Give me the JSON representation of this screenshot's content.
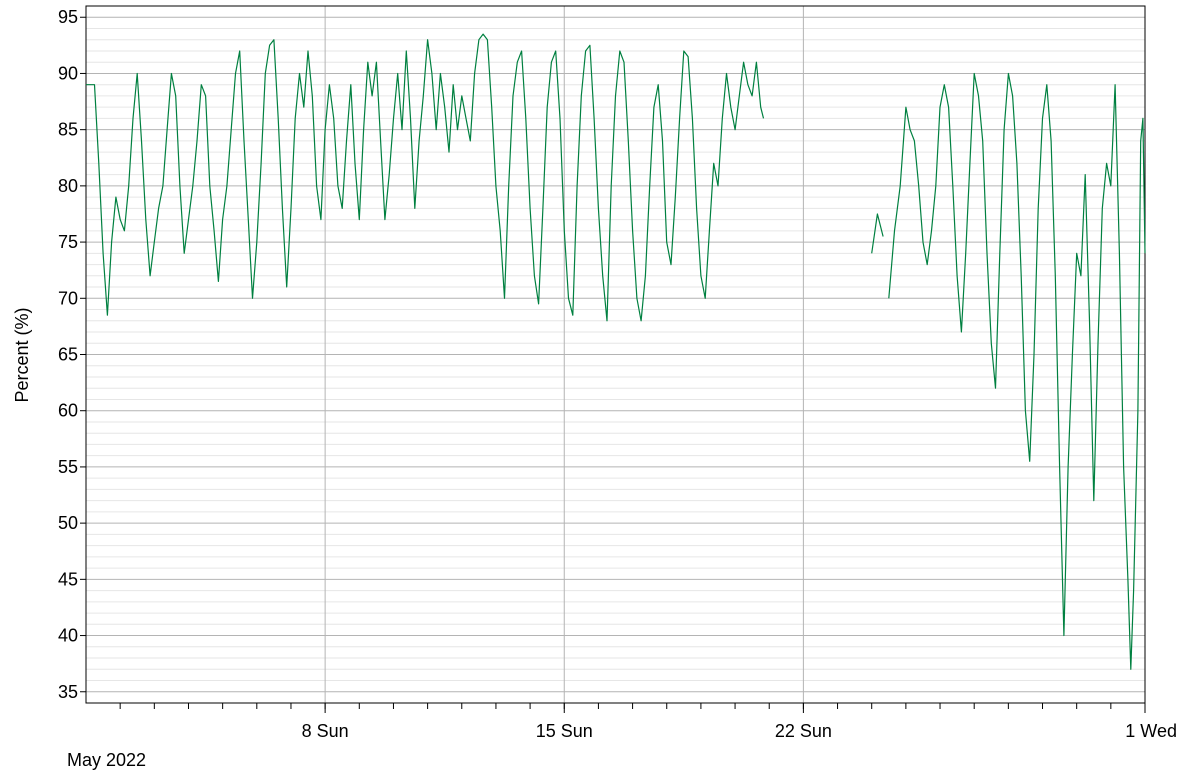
{
  "chart_data": {
    "type": "line",
    "title": "",
    "xlabel": "",
    "ylabel": "Percent (%)",
    "period_label": "May 2022",
    "xlim": [
      "2022-05-01",
      "2022-06-01"
    ],
    "ylim": [
      34,
      96
    ],
    "y_ticks": [
      35,
      40,
      45,
      50,
      55,
      60,
      65,
      70,
      75,
      80,
      85,
      90,
      95
    ],
    "x_ticks": [
      {
        "date": "2022-05-08",
        "label": "8 Sun"
      },
      {
        "date": "2022-05-15",
        "label": "15 Sun"
      },
      {
        "date": "2022-05-22",
        "label": "22 Sun"
      },
      {
        "date": "2022-06-01",
        "label": "1 Wed"
      }
    ],
    "grid": true,
    "legend": "none",
    "colors": {
      "series": "#008040",
      "grid_major": "#b4b4b4",
      "grid_minor": "#e6e6e6",
      "axis": "#000000"
    },
    "series": [
      {
        "points": [
          [
            "2022-05-01 00:00",
            89
          ],
          [
            "2022-05-01 06:00",
            89
          ],
          [
            "2022-05-01 09:00",
            82
          ],
          [
            "2022-05-01 12:00",
            74
          ],
          [
            "2022-05-01 15:00",
            68.5
          ],
          [
            "2022-05-01 18:00",
            75
          ],
          [
            "2022-05-01 21:00",
            79
          ],
          [
            "2022-05-02 00:00",
            77
          ],
          [
            "2022-05-02 03:00",
            76
          ],
          [
            "2022-05-02 06:00",
            80
          ],
          [
            "2022-05-02 09:00",
            86
          ],
          [
            "2022-05-02 12:00",
            90
          ],
          [
            "2022-05-02 15:00",
            84
          ],
          [
            "2022-05-02 18:00",
            77
          ],
          [
            "2022-05-02 21:00",
            72
          ],
          [
            "2022-05-03 00:00",
            75
          ],
          [
            "2022-05-03 03:00",
            78
          ],
          [
            "2022-05-03 06:00",
            80
          ],
          [
            "2022-05-03 09:00",
            85
          ],
          [
            "2022-05-03 12:00",
            90
          ],
          [
            "2022-05-03 15:00",
            88
          ],
          [
            "2022-05-03 18:00",
            80
          ],
          [
            "2022-05-03 21:00",
            74
          ],
          [
            "2022-05-04 00:00",
            77
          ],
          [
            "2022-05-04 03:00",
            80
          ],
          [
            "2022-05-04 06:00",
            84
          ],
          [
            "2022-05-04 09:00",
            89
          ],
          [
            "2022-05-04 12:00",
            88
          ],
          [
            "2022-05-04 15:00",
            80
          ],
          [
            "2022-05-04 18:00",
            76
          ],
          [
            "2022-05-04 21:00",
            71.5
          ],
          [
            "2022-05-05 00:00",
            77
          ],
          [
            "2022-05-05 03:00",
            80
          ],
          [
            "2022-05-05 06:00",
            85
          ],
          [
            "2022-05-05 09:00",
            90
          ],
          [
            "2022-05-05 12:00",
            92
          ],
          [
            "2022-05-05 15:00",
            84
          ],
          [
            "2022-05-05 18:00",
            77
          ],
          [
            "2022-05-05 21:00",
            70
          ],
          [
            "2022-05-06 00:00",
            75
          ],
          [
            "2022-05-06 03:00",
            82
          ],
          [
            "2022-05-06 06:00",
            90
          ],
          [
            "2022-05-06 09:00",
            92.5
          ],
          [
            "2022-05-06 12:00",
            93
          ],
          [
            "2022-05-06 15:00",
            86
          ],
          [
            "2022-05-06 18:00",
            78
          ],
          [
            "2022-05-06 21:00",
            71
          ],
          [
            "2022-05-07 00:00",
            78
          ],
          [
            "2022-05-07 03:00",
            86
          ],
          [
            "2022-05-07 06:00",
            90
          ],
          [
            "2022-05-07 09:00",
            87
          ],
          [
            "2022-05-07 12:00",
            92
          ],
          [
            "2022-05-07 15:00",
            88
          ],
          [
            "2022-05-07 18:00",
            80
          ],
          [
            "2022-05-07 21:00",
            77
          ],
          [
            "2022-05-08 00:00",
            85
          ],
          [
            "2022-05-08 03:00",
            89
          ],
          [
            "2022-05-08 06:00",
            86
          ],
          [
            "2022-05-08 09:00",
            80
          ],
          [
            "2022-05-08 12:00",
            78
          ],
          [
            "2022-05-08 15:00",
            84
          ],
          [
            "2022-05-08 18:00",
            89
          ],
          [
            "2022-05-08 21:00",
            82
          ],
          [
            "2022-05-09 00:00",
            77
          ],
          [
            "2022-05-09 03:00",
            85
          ],
          [
            "2022-05-09 06:00",
            91
          ],
          [
            "2022-05-09 09:00",
            88
          ],
          [
            "2022-05-09 12:00",
            91
          ],
          [
            "2022-05-09 15:00",
            84
          ],
          [
            "2022-05-09 18:00",
            77
          ],
          [
            "2022-05-09 21:00",
            81
          ],
          [
            "2022-05-10 00:00",
            86
          ],
          [
            "2022-05-10 03:00",
            90
          ],
          [
            "2022-05-10 06:00",
            85
          ],
          [
            "2022-05-10 09:00",
            92
          ],
          [
            "2022-05-10 12:00",
            86
          ],
          [
            "2022-05-10 15:00",
            78
          ],
          [
            "2022-05-10 18:00",
            84
          ],
          [
            "2022-05-10 21:00",
            88
          ],
          [
            "2022-05-11 00:00",
            93
          ],
          [
            "2022-05-11 03:00",
            90
          ],
          [
            "2022-05-11 06:00",
            85
          ],
          [
            "2022-05-11 09:00",
            90
          ],
          [
            "2022-05-11 12:00",
            87
          ],
          [
            "2022-05-11 15:00",
            83
          ],
          [
            "2022-05-11 18:00",
            89
          ],
          [
            "2022-05-11 21:00",
            85
          ],
          [
            "2022-05-12 00:00",
            88
          ],
          [
            "2022-05-12 03:00",
            86
          ],
          [
            "2022-05-12 06:00",
            84
          ],
          [
            "2022-05-12 09:00",
            90
          ],
          [
            "2022-05-12 12:00",
            93
          ],
          [
            "2022-05-12 15:00",
            93.5
          ],
          [
            "2022-05-12 18:00",
            93
          ],
          [
            "2022-05-12 21:00",
            87
          ],
          [
            "2022-05-13 00:00",
            80
          ],
          [
            "2022-05-13 03:00",
            76
          ],
          [
            "2022-05-13 06:00",
            70
          ],
          [
            "2022-05-13 09:00",
            80
          ],
          [
            "2022-05-13 12:00",
            88
          ],
          [
            "2022-05-13 15:00",
            91
          ],
          [
            "2022-05-13 18:00",
            92
          ],
          [
            "2022-05-13 21:00",
            86
          ],
          [
            "2022-05-14 00:00",
            78
          ],
          [
            "2022-05-14 03:00",
            72
          ],
          [
            "2022-05-14 06:00",
            69.5
          ],
          [
            "2022-05-14 09:00",
            78
          ],
          [
            "2022-05-14 12:00",
            87
          ],
          [
            "2022-05-14 15:00",
            91
          ],
          [
            "2022-05-14 18:00",
            92
          ],
          [
            "2022-05-14 21:00",
            86
          ],
          [
            "2022-05-15 00:00",
            76
          ],
          [
            "2022-05-15 03:00",
            70
          ],
          [
            "2022-05-15 06:00",
            68.5
          ],
          [
            "2022-05-15 09:00",
            80
          ],
          [
            "2022-05-15 12:00",
            88
          ],
          [
            "2022-05-15 15:00",
            92
          ],
          [
            "2022-05-15 18:00",
            92.5
          ],
          [
            "2022-05-15 21:00",
            86
          ],
          [
            "2022-05-16 00:00",
            78
          ],
          [
            "2022-05-16 03:00",
            72
          ],
          [
            "2022-05-16 06:00",
            68
          ],
          [
            "2022-05-16 09:00",
            80
          ],
          [
            "2022-05-16 12:00",
            88
          ],
          [
            "2022-05-16 15:00",
            92
          ],
          [
            "2022-05-16 18:00",
            91
          ],
          [
            "2022-05-16 21:00",
            84
          ],
          [
            "2022-05-17 00:00",
            76
          ],
          [
            "2022-05-17 03:00",
            70
          ],
          [
            "2022-05-17 06:00",
            68
          ],
          [
            "2022-05-17 09:00",
            72
          ],
          [
            "2022-05-17 12:00",
            80
          ],
          [
            "2022-05-17 15:00",
            87
          ],
          [
            "2022-05-17 18:00",
            89
          ],
          [
            "2022-05-17 21:00",
            84
          ],
          [
            "2022-05-18 00:00",
            75
          ],
          [
            "2022-05-18 03:00",
            73
          ],
          [
            "2022-05-18 06:00",
            79
          ],
          [
            "2022-05-18 09:00",
            86
          ],
          [
            "2022-05-18 12:00",
            92
          ],
          [
            "2022-05-18 15:00",
            91.5
          ],
          [
            "2022-05-18 18:00",
            86
          ],
          [
            "2022-05-18 21:00",
            78
          ],
          [
            "2022-05-19 00:00",
            72
          ],
          [
            "2022-05-19 03:00",
            70
          ],
          [
            "2022-05-19 06:00",
            76
          ],
          [
            "2022-05-19 09:00",
            82
          ],
          [
            "2022-05-19 12:00",
            80
          ],
          [
            "2022-05-19 15:00",
            86
          ],
          [
            "2022-05-19 18:00",
            90
          ],
          [
            "2022-05-19 21:00",
            87
          ],
          [
            "2022-05-20 00:00",
            85
          ],
          [
            "2022-05-20 03:00",
            88
          ],
          [
            "2022-05-20 06:00",
            91
          ],
          [
            "2022-05-20 09:00",
            89
          ],
          [
            "2022-05-20 12:00",
            88
          ],
          [
            "2022-05-20 15:00",
            91
          ],
          [
            "2022-05-20 18:00",
            87
          ],
          [
            "2022-05-20 20:00",
            86
          ],
          null,
          [
            "2022-05-24 00:00",
            74
          ],
          [
            "2022-05-24 04:00",
            77.5
          ],
          [
            "2022-05-24 08:00",
            75.5
          ],
          null,
          [
            "2022-05-24 12:00",
            70
          ],
          [
            "2022-05-24 16:00",
            76
          ],
          [
            "2022-05-24 20:00",
            80
          ],
          [
            "2022-05-25 00:00",
            87
          ],
          [
            "2022-05-25 03:00",
            85
          ],
          [
            "2022-05-25 06:00",
            84
          ],
          [
            "2022-05-25 09:00",
            80
          ],
          [
            "2022-05-25 12:00",
            75
          ],
          [
            "2022-05-25 15:00",
            73
          ],
          [
            "2022-05-25 18:00",
            76
          ],
          [
            "2022-05-25 21:00",
            80
          ],
          [
            "2022-05-26 00:00",
            87
          ],
          [
            "2022-05-26 03:00",
            89
          ],
          [
            "2022-05-26 06:00",
            87
          ],
          [
            "2022-05-26 09:00",
            80
          ],
          [
            "2022-05-26 12:00",
            72
          ],
          [
            "2022-05-26 15:00",
            67
          ],
          [
            "2022-05-26 18:00",
            74
          ],
          [
            "2022-05-26 21:00",
            82
          ],
          [
            "2022-05-27 00:00",
            90
          ],
          [
            "2022-05-27 03:00",
            88
          ],
          [
            "2022-05-27 06:00",
            84
          ],
          [
            "2022-05-27 09:00",
            74
          ],
          [
            "2022-05-27 12:00",
            66
          ],
          [
            "2022-05-27 15:00",
            62
          ],
          [
            "2022-05-27 18:00",
            74
          ],
          [
            "2022-05-27 21:00",
            85
          ],
          [
            "2022-05-28 00:00",
            90
          ],
          [
            "2022-05-28 03:00",
            88
          ],
          [
            "2022-05-28 06:00",
            82
          ],
          [
            "2022-05-28 09:00",
            72
          ],
          [
            "2022-05-28 12:00",
            60
          ],
          [
            "2022-05-28 15:00",
            55.5
          ],
          [
            "2022-05-28 18:00",
            65
          ],
          [
            "2022-05-28 21:00",
            78
          ],
          [
            "2022-05-29 00:00",
            86
          ],
          [
            "2022-05-29 03:00",
            89
          ],
          [
            "2022-05-29 06:00",
            84
          ],
          [
            "2022-05-29 09:00",
            72
          ],
          [
            "2022-05-29 12:00",
            55
          ],
          [
            "2022-05-29 15:00",
            40
          ],
          [
            "2022-05-29 18:00",
            55
          ],
          [
            "2022-05-29 21:00",
            65
          ],
          [
            "2022-05-30 00:00",
            74
          ],
          [
            "2022-05-30 03:00",
            72
          ],
          [
            "2022-05-30 06:00",
            81
          ],
          [
            "2022-05-30 09:00",
            68
          ],
          [
            "2022-05-30 12:00",
            52
          ],
          [
            "2022-05-30 15:00",
            66
          ],
          [
            "2022-05-30 18:00",
            78
          ],
          [
            "2022-05-30 21:00",
            82
          ],
          [
            "2022-05-31 00:00",
            80
          ],
          [
            "2022-05-31 03:00",
            89
          ],
          [
            "2022-05-31 06:00",
            74
          ],
          [
            "2022-05-31 09:00",
            55
          ],
          [
            "2022-05-31 12:00",
            45
          ],
          [
            "2022-05-31 14:00",
            37
          ],
          [
            "2022-05-31 16:00",
            44
          ],
          [
            "2022-05-31 19:00",
            60
          ],
          [
            "2022-05-31 21:00",
            84
          ],
          [
            "2022-05-31 22:30",
            86
          ],
          [
            "2022-06-01 00:00",
            74
          ]
        ]
      }
    ]
  }
}
